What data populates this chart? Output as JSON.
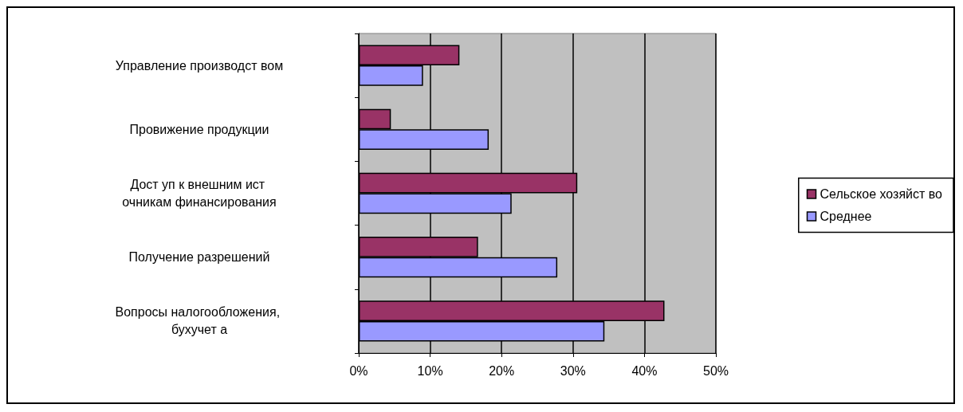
{
  "chart_data": {
    "type": "bar",
    "orientation": "horizontal",
    "categories": [
      "Управление производст вом",
      "Провижение продукции",
      "Дост уп к внешним ист очникам финансирования",
      "Получение разрешений",
      "Вопросы налогообложения, бухучет а"
    ],
    "series": [
      {
        "name": "Сельское хозяйст во",
        "color": "#993366",
        "values": [
          14.1,
          4.5,
          30.6,
          16.7,
          42.8
        ]
      },
      {
        "name": "Среднее",
        "color": "#9999ff",
        "values": [
          9.0,
          18.2,
          21.4,
          27.8,
          34.4
        ]
      }
    ],
    "xlim": [
      0,
      50
    ],
    "xticks": [
      {
        "value": 0,
        "label": "0%"
      },
      {
        "value": 10,
        "label": "10%"
      },
      {
        "value": 20,
        "label": "20%"
      },
      {
        "value": 30,
        "label": "30%"
      },
      {
        "value": 40,
        "label": "40%"
      },
      {
        "value": 50,
        "label": "50%"
      }
    ],
    "grid": "x",
    "legend": "right"
  }
}
